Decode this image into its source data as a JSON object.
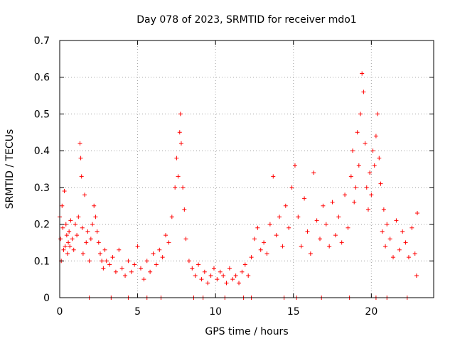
{
  "chart_data": {
    "type": "scatter",
    "title": "Day 078 of 2023, SRMTID for receiver mdo1",
    "xlabel": "GPS time / hours",
    "ylabel": "SRMTID / TECUs",
    "xlim": [
      0,
      24
    ],
    "ylim": [
      0,
      0.7
    ],
    "xticks": [
      0,
      5,
      10,
      15,
      20
    ],
    "xtick_labels": [
      "0",
      "5",
      "10",
      "15",
      "20"
    ],
    "yticks": [
      0,
      0.1,
      0.2,
      0.3,
      0.4,
      0.5,
      0.6,
      0.7
    ],
    "ytick_labels": [
      "0",
      "0.1",
      "0.2",
      "0.3",
      "0.4",
      "0.5",
      "0.6",
      "0.7"
    ],
    "grid": true,
    "marker": "+",
    "color": "#ff0000",
    "series": [
      {
        "name": "SRMTID",
        "points": [
          [
            0.0,
            0.22
          ],
          [
            0.05,
            0.16
          ],
          [
            0.1,
            0.1
          ],
          [
            0.15,
            0.25
          ],
          [
            0.2,
            0.19
          ],
          [
            0.25,
            0.13
          ],
          [
            0.3,
            0.29
          ],
          [
            0.35,
            0.14
          ],
          [
            0.4,
            0.2
          ],
          [
            0.45,
            0.17
          ],
          [
            0.5,
            0.12
          ],
          [
            0.55,
            0.15
          ],
          [
            0.6,
            0.18
          ],
          [
            0.65,
            0.14
          ],
          [
            0.7,
            0.21
          ],
          [
            0.8,
            0.16
          ],
          [
            0.9,
            0.13
          ],
          [
            1.0,
            0.2
          ],
          [
            1.1,
            0.17
          ],
          [
            1.2,
            0.22
          ],
          [
            1.3,
            0.42
          ],
          [
            1.35,
            0.38
          ],
          [
            1.4,
            0.33
          ],
          [
            1.45,
            0.19
          ],
          [
            1.5,
            0.12
          ],
          [
            1.6,
            0.28
          ],
          [
            1.7,
            0.15
          ],
          [
            1.8,
            0.18
          ],
          [
            1.9,
            0.1
          ],
          [
            2.0,
            0.16
          ],
          [
            2.1,
            0.2
          ],
          [
            2.2,
            0.25
          ],
          [
            2.3,
            0.22
          ],
          [
            2.4,
            0.18
          ],
          [
            2.5,
            0.15
          ],
          [
            2.6,
            0.12
          ],
          [
            2.7,
            0.1
          ],
          [
            2.8,
            0.08
          ],
          [
            2.9,
            0.13
          ],
          [
            3.0,
            0.1
          ],
          [
            3.2,
            0.09
          ],
          [
            3.4,
            0.11
          ],
          [
            3.6,
            0.07
          ],
          [
            3.8,
            0.13
          ],
          [
            4.0,
            0.08
          ],
          [
            4.2,
            0.06
          ],
          [
            4.4,
            0.1
          ],
          [
            4.6,
            0.07
          ],
          [
            4.8,
            0.09
          ],
          [
            5.0,
            0.14
          ],
          [
            5.2,
            0.08
          ],
          [
            5.4,
            0.05
          ],
          [
            5.6,
            0.1
          ],
          [
            5.8,
            0.07
          ],
          [
            6.0,
            0.12
          ],
          [
            6.2,
            0.09
          ],
          [
            6.4,
            0.13
          ],
          [
            6.6,
            0.11
          ],
          [
            6.8,
            0.17
          ],
          [
            7.0,
            0.15
          ],
          [
            7.2,
            0.22
          ],
          [
            7.4,
            0.3
          ],
          [
            7.5,
            0.38
          ],
          [
            7.6,
            0.33
          ],
          [
            7.7,
            0.45
          ],
          [
            7.75,
            0.5
          ],
          [
            7.8,
            0.42
          ],
          [
            7.9,
            0.3
          ],
          [
            8.0,
            0.24
          ],
          [
            8.1,
            0.16
          ],
          [
            8.3,
            0.1
          ],
          [
            8.5,
            0.08
          ],
          [
            8.7,
            0.06
          ],
          [
            8.9,
            0.09
          ],
          [
            9.1,
            0.05
          ],
          [
            9.3,
            0.07
          ],
          [
            9.5,
            0.04
          ],
          [
            9.7,
            0.06
          ],
          [
            9.9,
            0.08
          ],
          [
            10.1,
            0.05
          ],
          [
            10.3,
            0.07
          ],
          [
            10.5,
            0.06
          ],
          [
            10.7,
            0.04
          ],
          [
            10.9,
            0.08
          ],
          [
            11.1,
            0.05
          ],
          [
            11.3,
            0.06
          ],
          [
            11.5,
            0.04
          ],
          [
            11.7,
            0.07
          ],
          [
            11.9,
            0.09
          ],
          [
            12.1,
            0.06
          ],
          [
            12.3,
            0.11
          ],
          [
            12.5,
            0.16
          ],
          [
            12.7,
            0.19
          ],
          [
            12.9,
            0.13
          ],
          [
            13.1,
            0.15
          ],
          [
            13.3,
            0.12
          ],
          [
            13.5,
            0.2
          ],
          [
            13.7,
            0.33
          ],
          [
            13.9,
            0.17
          ],
          [
            14.1,
            0.22
          ],
          [
            14.3,
            0.14
          ],
          [
            14.5,
            0.25
          ],
          [
            14.7,
            0.19
          ],
          [
            14.9,
            0.3
          ],
          [
            15.1,
            0.36
          ],
          [
            15.3,
            0.22
          ],
          [
            15.5,
            0.14
          ],
          [
            15.7,
            0.27
          ],
          [
            15.9,
            0.18
          ],
          [
            16.1,
            0.12
          ],
          [
            16.3,
            0.34
          ],
          [
            16.5,
            0.21
          ],
          [
            16.7,
            0.16
          ],
          [
            16.9,
            0.25
          ],
          [
            17.1,
            0.2
          ],
          [
            17.3,
            0.14
          ],
          [
            17.5,
            0.26
          ],
          [
            17.7,
            0.17
          ],
          [
            17.9,
            0.22
          ],
          [
            18.1,
            0.15
          ],
          [
            18.3,
            0.28
          ],
          [
            18.5,
            0.19
          ],
          [
            18.7,
            0.33
          ],
          [
            18.8,
            0.4
          ],
          [
            18.9,
            0.26
          ],
          [
            19.0,
            0.3
          ],
          [
            19.1,
            0.45
          ],
          [
            19.2,
            0.36
          ],
          [
            19.3,
            0.5
          ],
          [
            19.4,
            0.61
          ],
          [
            19.5,
            0.56
          ],
          [
            19.6,
            0.42
          ],
          [
            19.7,
            0.3
          ],
          [
            19.8,
            0.24
          ],
          [
            19.9,
            0.34
          ],
          [
            20.0,
            0.28
          ],
          [
            20.1,
            0.4
          ],
          [
            20.2,
            0.36
          ],
          [
            20.3,
            0.44
          ],
          [
            20.4,
            0.5
          ],
          [
            20.5,
            0.38
          ],
          [
            20.6,
            0.31
          ],
          [
            20.7,
            0.18
          ],
          [
            20.8,
            0.24
          ],
          [
            20.9,
            0.14
          ],
          [
            21.0,
            0.2
          ],
          [
            21.2,
            0.16
          ],
          [
            21.4,
            0.11
          ],
          [
            21.6,
            0.21
          ],
          [
            21.8,
            0.13
          ],
          [
            22.0,
            0.18
          ],
          [
            22.2,
            0.15
          ],
          [
            22.4,
            0.11
          ],
          [
            22.6,
            0.19
          ],
          [
            22.8,
            0.12
          ],
          [
            22.9,
            0.06
          ],
          [
            22.95,
            0.23
          ],
          [
            1.9,
            0
          ],
          [
            3.3,
            0
          ],
          [
            4.4,
            0
          ],
          [
            5.6,
            0
          ],
          [
            6.5,
            0
          ],
          [
            8.6,
            0
          ],
          [
            9.2,
            0
          ],
          [
            10.6,
            0
          ],
          [
            11.8,
            0
          ],
          [
            12.3,
            0
          ],
          [
            14.4,
            0
          ],
          [
            15.2,
            0
          ],
          [
            16.8,
            0
          ],
          [
            18.6,
            0
          ],
          [
            20.3,
            0
          ],
          [
            21.0,
            0
          ],
          [
            22.3,
            0
          ]
        ]
      }
    ]
  }
}
